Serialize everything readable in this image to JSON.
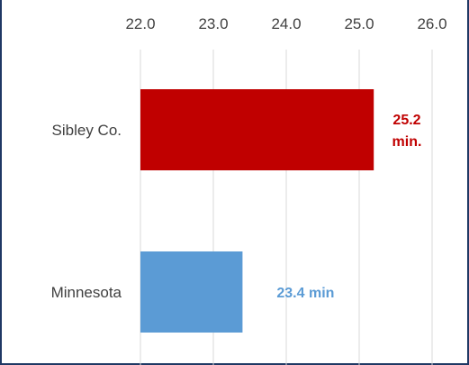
{
  "chart_data": {
    "type": "bar",
    "orientation": "horizontal",
    "categories": [
      "Sibley Co.",
      "Minnesota"
    ],
    "values": [
      25.2,
      23.4
    ],
    "data_labels": [
      [
        "25.2",
        "min."
      ],
      [
        "23.4 min"
      ]
    ],
    "x_ticks": [
      "22.0",
      "23.0",
      "24.0",
      "25.0",
      "26.0"
    ],
    "xlim": [
      22.0,
      26.0
    ],
    "tick_position": "top",
    "grid": "vertical",
    "legend": "none",
    "colors": [
      "#C00000",
      "#5B9BD5"
    ],
    "gridline_color": "#D9D9D9",
    "frame_color": "#1F3864"
  }
}
